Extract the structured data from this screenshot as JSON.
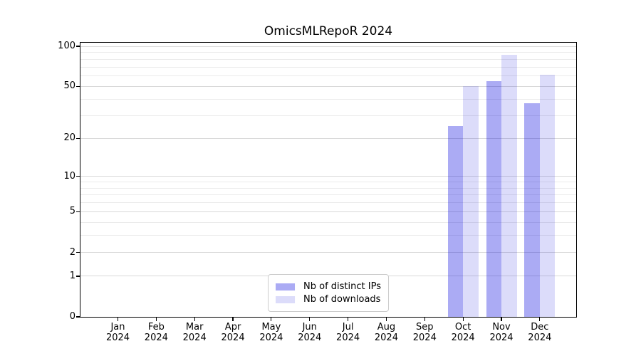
{
  "title": "OmicsMLRepoR 2024",
  "chart_data": {
    "type": "bar",
    "title": "OmicsMLRepoR 2024",
    "categories": [
      "Jan 2024",
      "Feb 2024",
      "Mar 2024",
      "Apr 2024",
      "May 2024",
      "Jun 2024",
      "Jul 2024",
      "Aug 2024",
      "Sep 2024",
      "Oct 2024",
      "Nov 2024",
      "Dec 2024"
    ],
    "series": [
      {
        "name": "Nb of distinct IPs",
        "color": "rgba(2,2,222,0.335)",
        "values": [
          null,
          null,
          null,
          null,
          null,
          null,
          null,
          null,
          null,
          25,
          55,
          37
        ]
      },
      {
        "name": "Nb of downloads",
        "color": "rgba(2,2,222,0.138)",
        "values": [
          null,
          null,
          null,
          null,
          null,
          null,
          null,
          null,
          null,
          50,
          86,
          61
        ]
      }
    ],
    "xlabel": "",
    "ylabel": "",
    "y_scale": "log1p",
    "ylim": [
      0,
      107
    ],
    "y_major_ticks": [
      0,
      1,
      2,
      5,
      10,
      20,
      50,
      100
    ],
    "y_minor_ticks": [
      3,
      4,
      6,
      7,
      8,
      9,
      30,
      40,
      60,
      70,
      80,
      90
    ],
    "grid": true,
    "legend_position": "lower center",
    "colors": {
      "major_gridline": "#d9d9d9",
      "minor_gridline": "#ebebeb",
      "axis": "#000000",
      "legend_border": "#cccccc",
      "background": "#ffffff"
    }
  }
}
